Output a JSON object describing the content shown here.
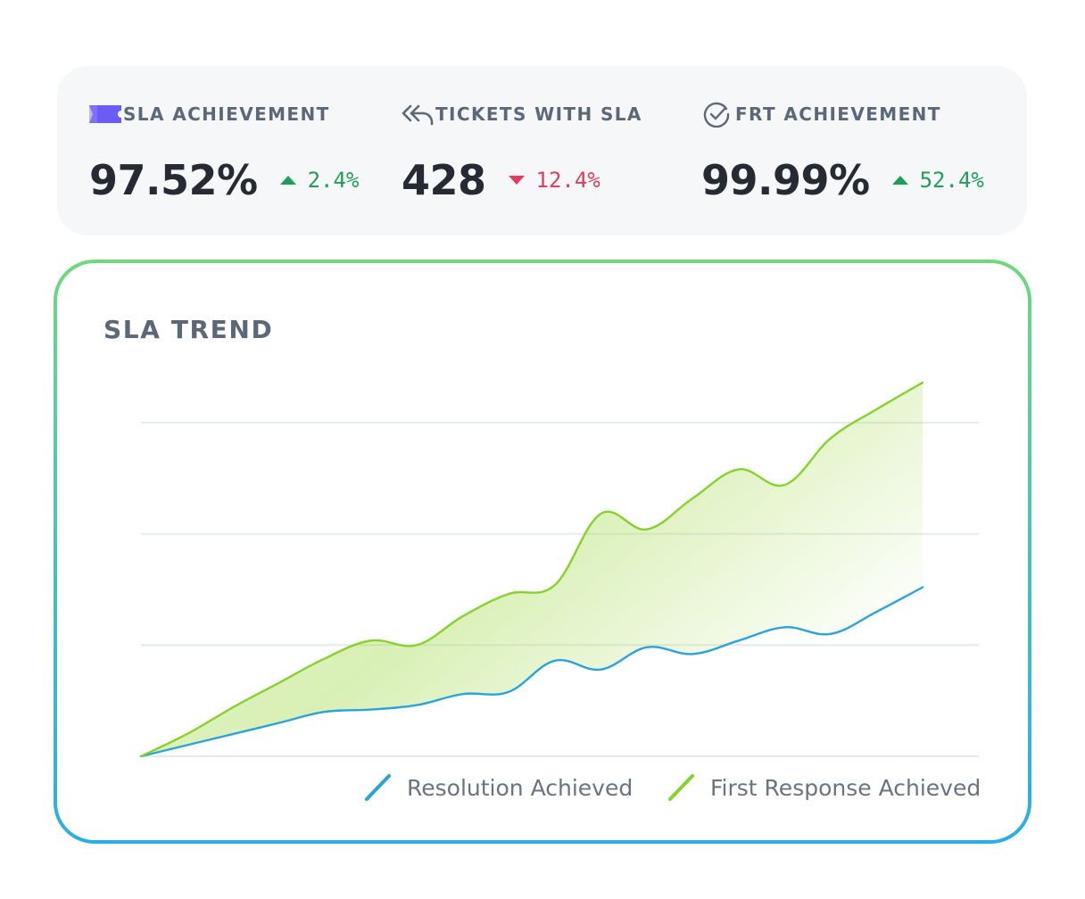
{
  "stats": [
    {
      "label": "SLA ACHIEVEMENT",
      "icon": "ticket-icon",
      "value": "97.52%",
      "delta": "2.4%",
      "direction": "up"
    },
    {
      "label": "TICKETS WITH SLA",
      "icon": "reply-all-icon",
      "value": "428",
      "delta": "12.4%",
      "direction": "down"
    },
    {
      "label": "FRT ACHIEVEMENT",
      "icon": "check-circle-icon",
      "value": "99.99%",
      "delta": "52.4%",
      "direction": "up"
    }
  ],
  "colors": {
    "up": "#1e9e58",
    "down": "#e23b5c",
    "ticket_icon": "#6b5cf5",
    "resolution": "#2aa3dc",
    "first_response": "#86d22a"
  },
  "trend": {
    "title": "SLA TREND",
    "legend": [
      "Resolution Achieved",
      "First Response Achieved"
    ]
  },
  "chart_data": {
    "type": "line",
    "title": "SLA TREND",
    "xlabel": "",
    "ylabel": "",
    "grid": true,
    "legend_position": "bottom-right",
    "x": [
      0,
      1,
      2,
      3,
      4,
      5,
      6,
      7,
      8,
      9,
      10,
      11,
      12,
      13,
      14,
      15,
      16,
      17
    ],
    "series": [
      {
        "name": "Resolution Achieved",
        "values": [
          0,
          0.5,
          1.0,
          1.5,
          2.0,
          2.1,
          2.3,
          2.8,
          2.9,
          4.3,
          3.9,
          4.9,
          4.6,
          5.2,
          5.8,
          5.5,
          6.5,
          7.6
        ],
        "area": false
      },
      {
        "name": "First Response Achieved",
        "values": [
          0,
          1.0,
          2.2,
          3.3,
          4.4,
          5.2,
          5.0,
          6.3,
          7.3,
          7.7,
          10.9,
          10.2,
          11.6,
          12.9,
          12.2,
          14.3,
          15.6,
          16.8
        ],
        "area": true
      }
    ],
    "ylim": [
      0,
      16.8
    ],
    "gridlines": [
      0,
      5,
      10,
      15
    ]
  }
}
